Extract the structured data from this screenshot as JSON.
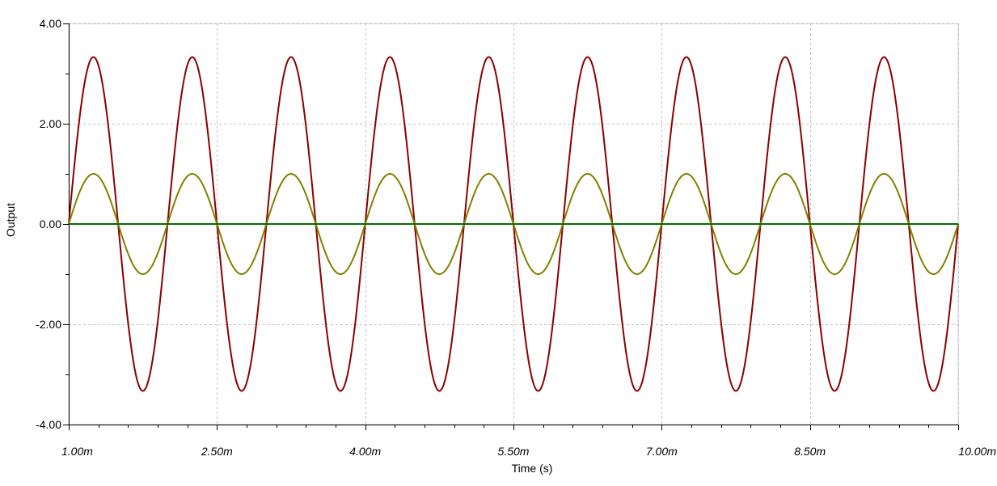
{
  "chart_data": {
    "type": "line",
    "xlabel": "Time (s)",
    "ylabel": "Output",
    "xlim": [
      0.001,
      0.01
    ],
    "ylim": [
      -4,
      4
    ],
    "x_ticks": [
      {
        "value": 0.001,
        "label": "1.00m"
      },
      {
        "value": 0.0025,
        "label": "2.50m"
      },
      {
        "value": 0.004,
        "label": "4.00m"
      },
      {
        "value": 0.0055,
        "label": "5.50m"
      },
      {
        "value": 0.007,
        "label": "7.00m"
      },
      {
        "value": 0.0085,
        "label": "8.50m"
      },
      {
        "value": 0.01,
        "label": "10.00m"
      }
    ],
    "y_ticks": [
      {
        "value": 4,
        "label": "4.00"
      },
      {
        "value": 2,
        "label": "2.00"
      },
      {
        "value": 0,
        "label": "0.00"
      },
      {
        "value": -2,
        "label": "-2.00"
      },
      {
        "value": -4,
        "label": "-4.00"
      }
    ],
    "grid": true,
    "series": [
      {
        "color": "#8b0000",
        "waveform": "sine",
        "amplitude": 3.33,
        "frequency_hz": 1000,
        "phase_time_s": 0.001,
        "offset": 0
      },
      {
        "color": "#808000",
        "waveform": "sine",
        "amplitude": 1.0,
        "frequency_hz": 1000,
        "phase_time_s": 0.001,
        "offset": 0
      },
      {
        "color": "#007000",
        "waveform": "constant",
        "amplitude": 0,
        "offset": 0
      }
    ]
  }
}
